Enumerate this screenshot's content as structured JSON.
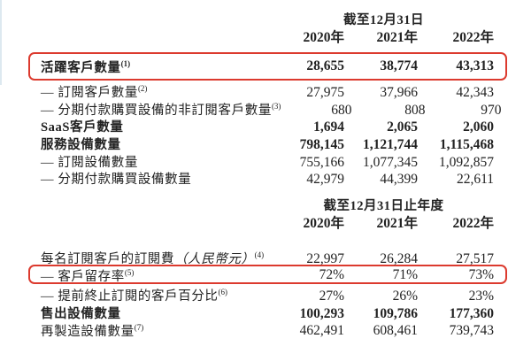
{
  "page": {
    "background": "#ffffff",
    "text_color": "#222222",
    "highlight_box_color": "#dc3a2e"
  },
  "table1": {
    "period_header": "截至12月31日",
    "years": [
      "2020年",
      "2021年",
      "2022年"
    ],
    "rows": [
      {
        "label": "活躍客戶數量",
        "sup": "(1)",
        "values": [
          "28,655",
          "38,774",
          "43,313"
        ]
      },
      {
        "label": "— 訂閱客戶數量",
        "sup": "(2)",
        "values": [
          "27,975",
          "37,966",
          "42,343"
        ]
      },
      {
        "label": "— 分期付款購買設備的非訂閱客戶數量",
        "sup": "(3)",
        "values": [
          "680",
          "808",
          "970"
        ]
      },
      {
        "label": "SaaS客戶數量",
        "sup": "",
        "values": [
          "1,694",
          "2,065",
          "2,060"
        ]
      },
      {
        "label": "服務設備數量",
        "sup": "",
        "values": [
          "798,145",
          "1,121,744",
          "1,115,468"
        ]
      },
      {
        "label": "— 訂閱設備數量",
        "sup": "",
        "values": [
          "755,166",
          "1,077,345",
          "1,092,857"
        ]
      },
      {
        "label": "— 分期付款購買設備數量",
        "sup": "",
        "values": [
          "42,979",
          "44,399",
          "22,611"
        ]
      }
    ]
  },
  "table2": {
    "period_header": "截至12月31日止年度",
    "years": [
      "2020年",
      "2021年",
      "2022年"
    ],
    "rows": [
      {
        "label": "每名訂閱客戶的訂閱費",
        "label_italic": "（人民幣元）",
        "sup": "(4)",
        "values": [
          "22,997",
          "26,284",
          "27,517"
        ]
      },
      {
        "label": "— 客戶留存率",
        "sup": "(5)",
        "values": [
          "72%",
          "71%",
          "73%"
        ]
      },
      {
        "label": "— 提前終止訂閱的客戶百分比",
        "sup": "(6)",
        "values": [
          "27%",
          "26%",
          "23%"
        ]
      },
      {
        "label": "售出設備數量",
        "sup": "",
        "values": [
          "100,293",
          "109,786",
          "177,360"
        ]
      },
      {
        "label": "再製造設備數量",
        "sup": "(7)",
        "values": [
          "462,491",
          "608,461",
          "739,743"
        ]
      }
    ]
  }
}
